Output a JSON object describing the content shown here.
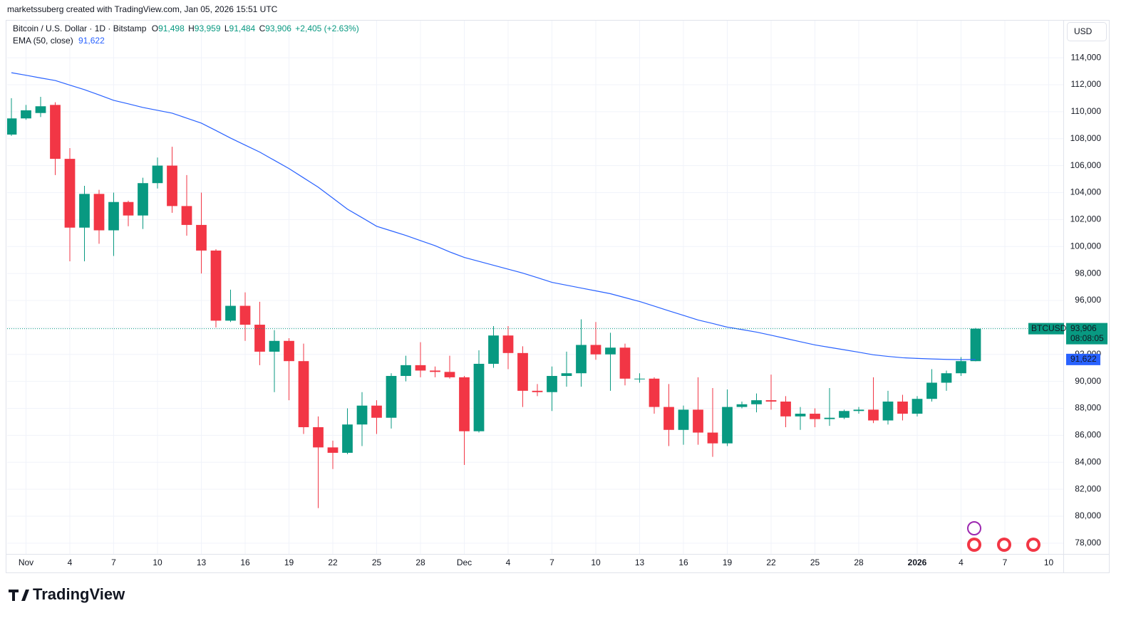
{
  "header": {
    "attribution": "marketssuberg created with TradingView.com, Jan 05, 2026 15:51 UTC"
  },
  "legend": {
    "symbol": "Bitcoin / U.S. Dollar · 1D · Bitstamp",
    "open_label": "O",
    "open": "91,498",
    "high_label": "H",
    "high": "93,959",
    "low_label": "L",
    "low": "91,484",
    "close_label": "C",
    "close": "93,906",
    "change": "+2,405 (+2.63%)",
    "ema_value": "91,622"
  },
  "price_axis": {
    "currency": "USD",
    "last_symbol": "BTCUSD",
    "last_price": "93,906",
    "countdown": "08:08:05",
    "ema_price": "91,622"
  },
  "footer": {
    "brand": "TradingView"
  },
  "chart_data": {
    "type": "candlestick",
    "x": [
      "2025-10-31",
      "2025-11-01",
      "2025-11-02",
      "2025-11-03",
      "2025-11-04",
      "2025-11-05",
      "2025-11-06",
      "2025-11-07",
      "2025-11-08",
      "2025-11-09",
      "2025-11-10",
      "2025-11-11",
      "2025-11-12",
      "2025-11-13",
      "2025-11-14",
      "2025-11-15",
      "2025-11-16",
      "2025-11-17",
      "2025-11-18",
      "2025-11-19",
      "2025-11-20",
      "2025-11-21",
      "2025-11-22",
      "2025-11-23",
      "2025-11-24",
      "2025-11-25",
      "2025-11-26",
      "2025-11-27",
      "2025-11-28",
      "2025-11-29",
      "2025-11-30",
      "2025-12-01",
      "2025-12-02",
      "2025-12-03",
      "2025-12-04",
      "2025-12-05",
      "2025-12-06",
      "2025-12-07",
      "2025-12-08",
      "2025-12-09",
      "2025-12-10",
      "2025-12-11",
      "2025-12-12",
      "2025-12-13",
      "2025-12-14",
      "2025-12-15",
      "2025-12-16",
      "2025-12-17",
      "2025-12-18",
      "2025-12-19",
      "2025-12-20",
      "2025-12-21",
      "2025-12-22",
      "2025-12-23",
      "2025-12-24",
      "2025-12-25",
      "2025-12-26",
      "2025-12-27",
      "2025-12-28",
      "2025-12-29",
      "2025-12-30",
      "2025-12-31",
      "2026-01-01",
      "2026-01-02",
      "2026-01-03",
      "2026-01-04",
      "2026-01-05"
    ],
    "series": [
      {
        "name": "BTCUSD",
        "up_color": "#089981",
        "down_color": "#f23645",
        "open": [
          108300,
          109500,
          109900,
          110500,
          106500,
          101400,
          103900,
          101200,
          103300,
          102300,
          104700,
          106000,
          103000,
          101600,
          99700,
          94500,
          95600,
          94200,
          92200,
          93000,
          91500,
          86600,
          85100,
          84700,
          86800,
          88200,
          87300,
          90400,
          91200,
          90800,
          90700,
          90300,
          86300,
          91300,
          93400,
          92100,
          89300,
          89200,
          90400,
          90600,
          92700,
          92000,
          92500,
          90200,
          90200,
          88100,
          86400,
          87900,
          86200,
          85400,
          88100,
          88300,
          88600,
          88500,
          87400,
          87600,
          87200,
          87300,
          87800,
          87900,
          87100,
          88500,
          87600,
          88700,
          89900,
          90600,
          91498
        ],
        "high": [
          111000,
          110500,
          111100,
          110700,
          107300,
          104500,
          104200,
          104000,
          103400,
          105100,
          106600,
          107400,
          105300,
          104000,
          99800,
          96800,
          96600,
          95900,
          93800,
          93200,
          92800,
          87400,
          85600,
          88000,
          89200,
          88600,
          90600,
          91900,
          92900,
          91100,
          91900,
          90400,
          92300,
          94100,
          94100,
          92600,
          89800,
          91100,
          92200,
          94600,
          94400,
          93600,
          92800,
          90600,
          90300,
          89800,
          88200,
          90300,
          89500,
          89400,
          88500,
          89100,
          90500,
          88900,
          88100,
          88000,
          89500,
          87900,
          88100,
          90300,
          89300,
          89000,
          88900,
          90900,
          90800,
          91800,
          93959
        ],
        "low": [
          108200,
          109400,
          109600,
          105300,
          98900,
          98900,
          100200,
          99300,
          101500,
          101300,
          104300,
          102500,
          100800,
          98000,
          94000,
          94400,
          93000,
          91200,
          89200,
          88600,
          86100,
          80600,
          83500,
          84600,
          85200,
          86100,
          86500,
          90000,
          90300,
          90300,
          90200,
          83800,
          86200,
          91000,
          90900,
          88100,
          88900,
          87800,
          89600,
          89600,
          91600,
          89300,
          89700,
          89900,
          87600,
          85200,
          85300,
          85300,
          84400,
          85200,
          88000,
          87700,
          87900,
          86600,
          86400,
          86600,
          86700,
          87200,
          87600,
          86900,
          86800,
          87100,
          87400,
          88500,
          89300,
          90400,
          91484
        ],
        "close": [
          109500,
          110100,
          110400,
          106500,
          101400,
          103900,
          101200,
          103300,
          102300,
          104700,
          106000,
          103000,
          101600,
          99700,
          94500,
          95600,
          94200,
          92200,
          93000,
          91500,
          86600,
          85100,
          84700,
          86800,
          88200,
          87300,
          90400,
          91200,
          90800,
          90700,
          90300,
          86300,
          91300,
          93400,
          92100,
          89300,
          89200,
          90400,
          90600,
          92700,
          92000,
          92500,
          90200,
          90200,
          88100,
          86400,
          87900,
          86200,
          85400,
          88100,
          88300,
          88600,
          88500,
          87400,
          87600,
          87200,
          87300,
          87800,
          87900,
          87100,
          88500,
          87600,
          88700,
          89900,
          90600,
          91500,
          93906
        ]
      },
      {
        "name": "EMA (50, close)",
        "color": "#2962ff",
        "values": [
          112890,
          112700,
          112500,
          112310,
          111970,
          111630,
          111240,
          110840,
          110580,
          110310,
          110100,
          109890,
          109520,
          109150,
          108600,
          108040,
          107520,
          107000,
          106390,
          105780,
          105090,
          104400,
          103590,
          102770,
          102140,
          101500,
          101160,
          100820,
          100440,
          100060,
          99600,
          99190,
          98900,
          98610,
          98320,
          98030,
          97690,
          97340,
          97130,
          96920,
          96710,
          96500,
          96210,
          95920,
          95580,
          95230,
          94890,
          94550,
          94290,
          94020,
          93840,
          93650,
          93420,
          93180,
          92940,
          92700,
          92520,
          92340,
          92160,
          91970,
          91850,
          91750,
          91700,
          91660,
          91630,
          91610,
          91622
        ]
      }
    ],
    "xlim": [
      "2025-10-30",
      "2026-01-11"
    ],
    "xticks": [
      {
        "value": "2025-11-01",
        "label": "Nov"
      },
      {
        "value": "2025-11-04",
        "label": "4"
      },
      {
        "value": "2025-11-07",
        "label": "7"
      },
      {
        "value": "2025-11-10",
        "label": "10"
      },
      {
        "value": "2025-11-13",
        "label": "13"
      },
      {
        "value": "2025-11-16",
        "label": "16"
      },
      {
        "value": "2025-11-19",
        "label": "19"
      },
      {
        "value": "2025-11-22",
        "label": "22"
      },
      {
        "value": "2025-11-25",
        "label": "25"
      },
      {
        "value": "2025-11-28",
        "label": "28"
      },
      {
        "value": "2025-12-01",
        "label": "Dec"
      },
      {
        "value": "2025-12-04",
        "label": "4"
      },
      {
        "value": "2025-12-07",
        "label": "7"
      },
      {
        "value": "2025-12-10",
        "label": "10"
      },
      {
        "value": "2025-12-13",
        "label": "13"
      },
      {
        "value": "2025-12-16",
        "label": "16"
      },
      {
        "value": "2025-12-19",
        "label": "19"
      },
      {
        "value": "2025-12-22",
        "label": "22"
      },
      {
        "value": "2025-12-25",
        "label": "25"
      },
      {
        "value": "2025-12-28",
        "label": "28"
      },
      {
        "value": "2026-01-01",
        "label": "2026"
      },
      {
        "value": "2026-01-04",
        "label": "4"
      },
      {
        "value": "2026-01-07",
        "label": "7"
      },
      {
        "value": "2026-01-10",
        "label": "10"
      }
    ],
    "ylim": [
      77200,
      116750
    ],
    "yticks": [
      {
        "value": 78000,
        "label": "78,000"
      },
      {
        "value": 80000,
        "label": "80,000"
      },
      {
        "value": 82000,
        "label": "82,000"
      },
      {
        "value": 84000,
        "label": "84,000"
      },
      {
        "value": 86000,
        "label": "86,000"
      },
      {
        "value": 88000,
        "label": "88,000"
      },
      {
        "value": 90000,
        "label": "90,000"
      },
      {
        "value": 92000,
        "label": "92,000"
      },
      {
        "value": 94000,
        "label": "94,000"
      },
      {
        "value": 96000,
        "label": "96,000"
      },
      {
        "value": 98000,
        "label": "98,000"
      },
      {
        "value": 100000,
        "label": "100,000"
      },
      {
        "value": 102000,
        "label": "102,000"
      },
      {
        "value": 104000,
        "label": "104,000"
      },
      {
        "value": 106000,
        "label": "106,000"
      },
      {
        "value": 108000,
        "label": "108,000"
      },
      {
        "value": 110000,
        "label": "110,000"
      },
      {
        "value": 112000,
        "label": "112,000"
      },
      {
        "value": 114000,
        "label": "114,000"
      }
    ],
    "grid": true
  }
}
